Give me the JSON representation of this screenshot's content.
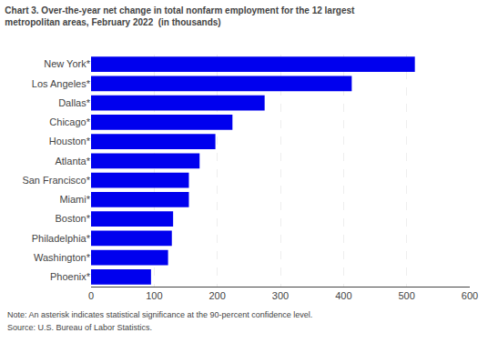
{
  "chart_data": {
    "type": "bar",
    "orientation": "horizontal",
    "title": "Chart 3. Over-the-year net change in total nonfarm employment for the 12 largest",
    "subtitle": "metropolitan areas, February 2022  (in thousands)",
    "categories": [
      "New York*",
      "Los Angeles*",
      "Dallas*",
      "Chicago*",
      "Houston*",
      "Atlanta*",
      "San Francisco*",
      "Miami*",
      "Boston*",
      "Philadelphia*",
      "Washington*",
      "Phoenix*"
    ],
    "values": [
      513,
      413,
      275,
      224,
      197,
      172,
      155,
      155,
      130,
      128,
      122,
      95
    ],
    "color": "#0000ee",
    "xlim": [
      0,
      600
    ],
    "xticks": [
      0,
      100,
      200,
      300,
      400,
      500,
      600
    ],
    "grid": true,
    "annotations": [
      "Note: An asterisk indicates statistical significance at the 90-percent confidence level.",
      "Source: U.S. Bureau of Labor Statistics."
    ]
  }
}
